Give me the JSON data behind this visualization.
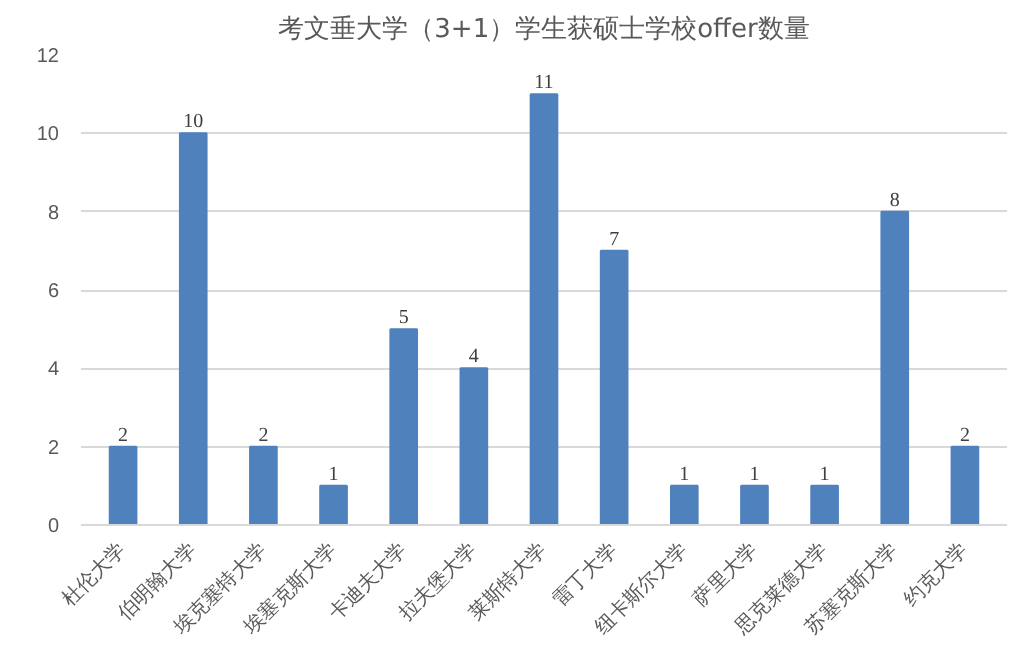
{
  "chart_data": {
    "type": "bar",
    "title": "考文垂大学（3+1）学生获硕士学校offer数量",
    "categories": [
      "杜伦大学",
      "伯明翰大学",
      "埃克塞特大学",
      "埃塞克斯大学",
      "卡迪夫大学",
      "拉夫堡大学",
      "莱斯特大学",
      "雷丁大学",
      "纽卡斯尔大学",
      "萨里大学",
      "思克莱德大学",
      "苏塞克斯大学",
      "约克大学"
    ],
    "values": [
      2,
      10,
      2,
      1,
      5,
      4,
      11,
      7,
      1,
      1,
      1,
      8,
      2
    ],
    "color": "#4f81bd",
    "ylim": [
      0,
      12
    ],
    "yticks": [
      0,
      2,
      4,
      6,
      8,
      10,
      12
    ],
    "grid": "y",
    "data_labels": true
  }
}
